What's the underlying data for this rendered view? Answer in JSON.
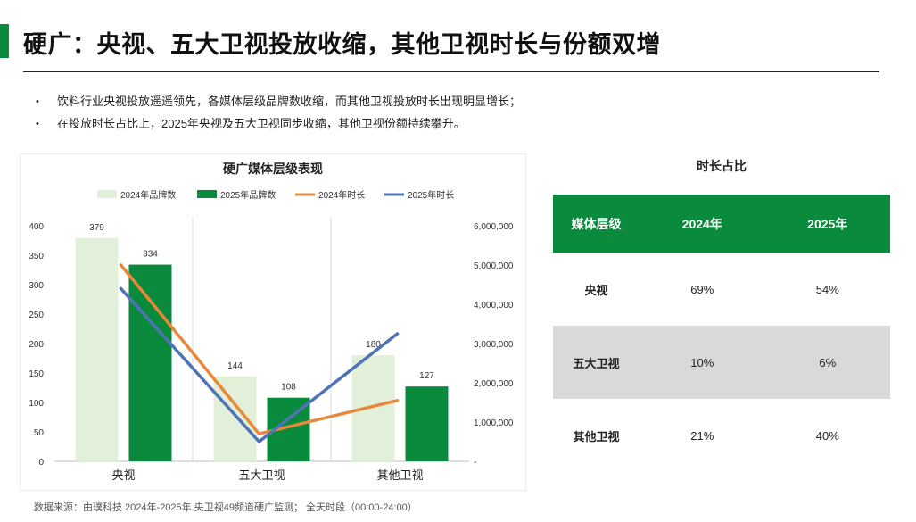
{
  "page": {
    "title": "硬广：央视、五大卫视投放收缩，其他卫视时长与份额双增",
    "bullets": [
      "饮料行业央视投放遥遥领先，各媒体层级品牌数收缩，而其他卫视投放时长出现明显增长；",
      "在投放时长占比上，2025年央视及五大卫视同步收缩，其他卫视份额持续攀升。"
    ],
    "source": "数据来源：由璞科技 2024年-2025年 央卫视49频道硬广监测； 全天时段（00:00-24:00）",
    "accent_color": "#0a8a3c"
  },
  "chart_data": {
    "type": "bar",
    "title": "硬广媒体层级表现",
    "categories": [
      "央视",
      "五大卫视",
      "其他卫视"
    ],
    "series": [
      {
        "name": "2024年品牌数",
        "type": "bar",
        "axis": "left",
        "color": "#e2efd9",
        "values": [
          379,
          144,
          180
        ]
      },
      {
        "name": "2025年品牌数",
        "type": "bar",
        "axis": "left",
        "color": "#0a8a3c",
        "values": [
          334,
          108,
          127
        ]
      },
      {
        "name": "2024年时长",
        "type": "line",
        "axis": "right",
        "color": "#e8883a",
        "values": [
          5000000,
          700000,
          1550000
        ]
      },
      {
        "name": "2025年时长",
        "type": "line",
        "axis": "right",
        "color": "#4f73b6",
        "values": [
          4400000,
          500000,
          3250000
        ]
      }
    ],
    "ylim_left": [
      0,
      400
    ],
    "yticks_left": [
      "0",
      "50",
      "100",
      "150",
      "200",
      "250",
      "300",
      "350",
      "400"
    ],
    "ylim_right": [
      0,
      6000000
    ],
    "yticks_right": [
      "-",
      "1,000,000",
      "2,000,000",
      "3,000,000",
      "4,000,000",
      "5,000,000",
      "6,000,000"
    ],
    "data_labels": [
      "379",
      "334",
      "144",
      "108",
      "180",
      "127"
    ],
    "legend_position": "top"
  },
  "table": {
    "title": "时长占比",
    "headers": [
      "媒体层级",
      "2024年",
      "2025年"
    ],
    "rows": [
      {
        "level": "央视",
        "y2024": "69%",
        "y2025": "54%"
      },
      {
        "level": "五大卫视",
        "y2024": "10%",
        "y2025": "6%"
      },
      {
        "level": "其他卫视",
        "y2024": "21%",
        "y2025": "40%"
      }
    ]
  }
}
